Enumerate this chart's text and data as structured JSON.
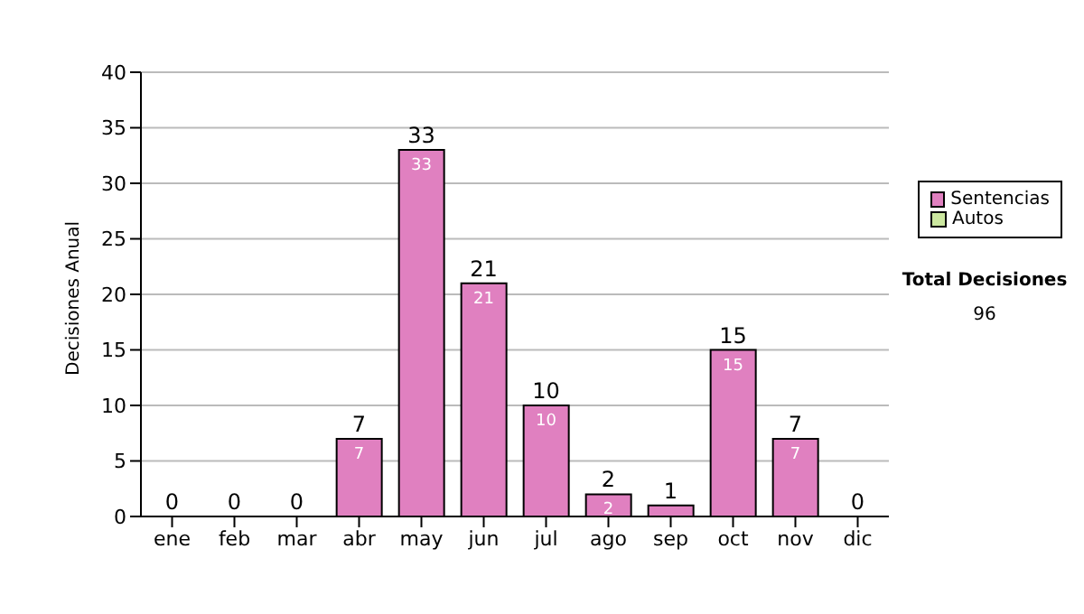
{
  "chart_data": {
    "type": "bar",
    "stacked": true,
    "ylabel": "Decisiones Anual",
    "categories": [
      "ene",
      "feb",
      "mar",
      "abr",
      "may",
      "jun",
      "jul",
      "ago",
      "sep",
      "oct",
      "nov",
      "dic"
    ],
    "series": [
      {
        "name": "Sentencias",
        "color": "#e080c0",
        "values": [
          0,
          0,
          0,
          7,
          33,
          21,
          10,
          2,
          1,
          15,
          7,
          0
        ],
        "value_labels": [
          null,
          null,
          null,
          "7",
          "33",
          "21",
          "10",
          "2",
          null,
          "15",
          "7",
          null
        ]
      },
      {
        "name": "Autos",
        "color": "#cce8a0",
        "values": [
          0,
          0,
          0,
          0,
          0,
          0,
          0,
          0,
          0,
          0,
          0,
          0
        ]
      }
    ],
    "totals": [
      "0",
      "0",
      "0",
      "7",
      "33",
      "21",
      "10",
      "2",
      "1",
      "15",
      "7",
      "0"
    ],
    "ylim": [
      0,
      40
    ],
    "yticks": [
      0,
      5,
      10,
      15,
      20,
      25,
      30,
      35,
      40
    ],
    "grid": "y",
    "legend": "right",
    "annotations": [
      "Total Decisiones",
      "96"
    ]
  }
}
